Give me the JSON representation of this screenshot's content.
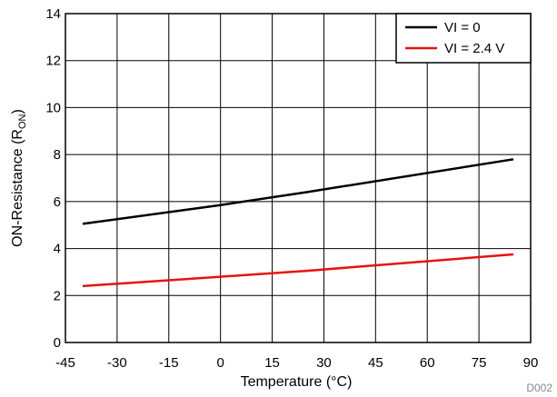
{
  "chart_data": {
    "type": "line",
    "title": "",
    "xlabel": "Temperature (°C)",
    "ylabel_main": "ON-Resistance (R",
    "ylabel_sub": "ON",
    "ylabel_close": ")",
    "xlim": [
      -45,
      90
    ],
    "ylim": [
      0,
      14
    ],
    "xticks": [
      -45,
      -30,
      -15,
      0,
      15,
      30,
      45,
      60,
      75,
      90
    ],
    "yticks": [
      0,
      2,
      4,
      6,
      8,
      10,
      12,
      14
    ],
    "grid": true,
    "legend_position": "top-right",
    "series": [
      {
        "name": "VI = 0",
        "color": "#000000",
        "x": [
          -40,
          0,
          25,
          85
        ],
        "y": [
          5.05,
          5.85,
          6.4,
          7.8
        ]
      },
      {
        "name": "VI = 2.4 V",
        "color": "#e8120f",
        "x": [
          -40,
          0,
          25,
          85
        ],
        "y": [
          2.4,
          2.8,
          3.05,
          3.75
        ]
      }
    ],
    "figure_id": "D002"
  }
}
